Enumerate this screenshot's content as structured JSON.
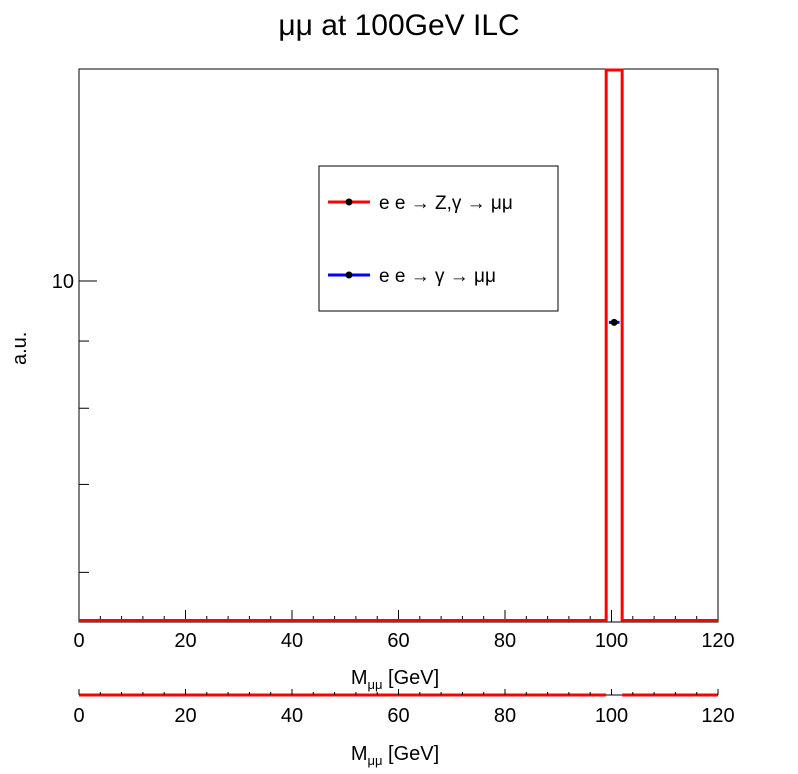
{
  "chart_data": [
    {
      "type": "histogram",
      "title": "μμ at 100GeV ILC",
      "xlabel": {
        "main": "M",
        "sub": "μμ",
        "rest": " [GeV]"
      },
      "ylabel": "a.u.",
      "xlim": [
        0,
        120
      ],
      "ylim": [
        5.5,
        14.5
      ],
      "yscale": "log",
      "x_ticks": [
        "0",
        "20",
        "40",
        "60",
        "80",
        "100",
        "120"
      ],
      "x_tick_values": [
        0,
        20,
        40,
        60,
        80,
        100,
        120
      ],
      "y_ticks": [
        "10"
      ],
      "y_tick_values": [
        10
      ],
      "legend_position": "top-center",
      "series": [
        {
          "name": "e e → Z,γ  → μμ",
          "color": "#ff0000",
          "draw": "histogram",
          "bins": [
            {
              "x0": 0,
              "x1": 99,
              "y": 0
            },
            {
              "x0": 99,
              "x1": 102,
              "y": 14.5
            },
            {
              "x0": 102,
              "x1": 120,
              "y": 0
            }
          ]
        },
        {
          "name": "e e → γ → μμ",
          "color": "#0000ff",
          "draw": "point",
          "points": [
            {
              "x": 100.5,
              "y": 9.3,
              "xerr": 1.0
            }
          ]
        }
      ]
    },
    {
      "type": "histogram",
      "xlabel": {
        "main": "M",
        "sub": "μμ",
        "rest": " [GeV]"
      },
      "xlim": [
        0,
        120
      ],
      "x_ticks": [
        "0",
        "20",
        "40",
        "60",
        "80",
        "100",
        "120"
      ],
      "x_tick_values": [
        0,
        20,
        40,
        60,
        80,
        100,
        120
      ],
      "series": [
        {
          "color": "#ff0000",
          "segments": [
            [
              0,
              99
            ],
            [
              102,
              120
            ]
          ]
        }
      ]
    }
  ]
}
